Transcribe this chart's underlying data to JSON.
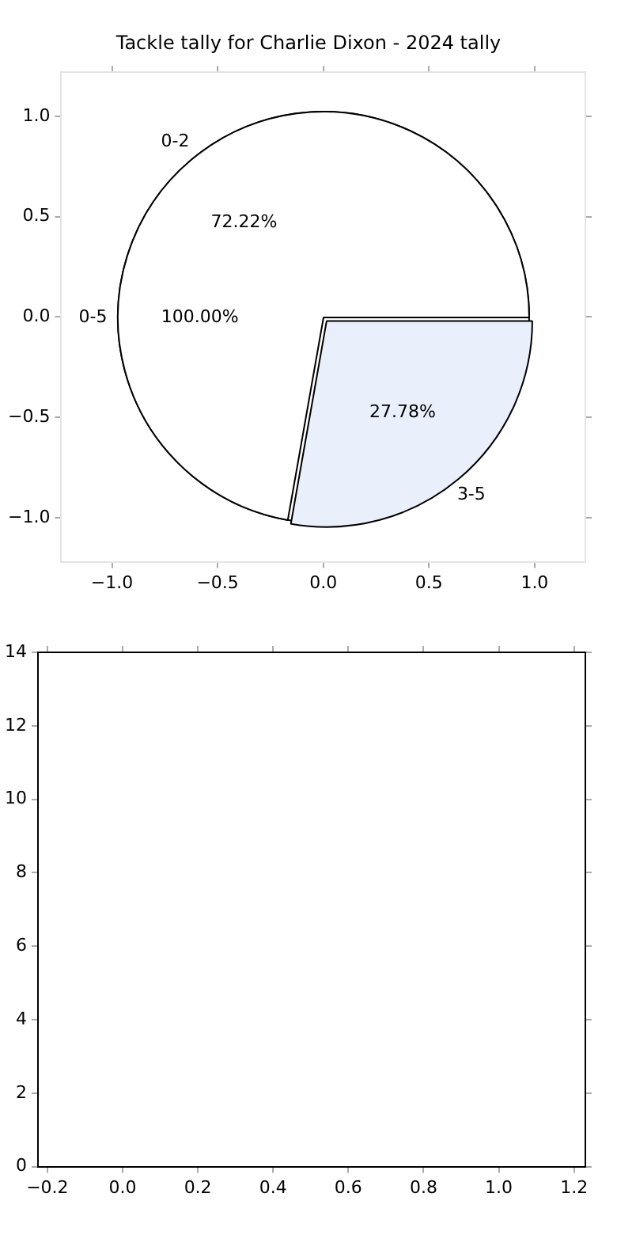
{
  "chart_data": [
    {
      "type": "scatter",
      "title": "Tackle tally for Charlie Dixon - 2024 tally",
      "xlim": [
        -1.24,
        1.24
      ],
      "ylim": [
        -1.22,
        1.22
      ],
      "xticks": [
        {
          "value": -1,
          "label": "−1.0"
        },
        {
          "value": -0.5,
          "label": "−0.5"
        },
        {
          "value": 0,
          "label": "0.0"
        },
        0.5,
        {
          "value": 1,
          "label": "1.0"
        }
      ],
      "yticks": [
        {
          "value": -1,
          "label": "−1.0"
        },
        {
          "value": -0.5,
          "label": "−0.5"
        },
        {
          "value": 0,
          "label": "0.0"
        },
        0.5,
        {
          "value": 1,
          "label": "1.0"
        }
      ]
    },
    {
      "type": "pie",
      "categories": [
        "0-5"
      ],
      "values": [
        100
      ],
      "colors": [
        "#ffffff"
      ],
      "value_labels": [
        "100.00%"
      ]
    },
    {
      "type": "pie",
      "categories": [
        "0-2",
        "3-5"
      ],
      "values": [
        72.22,
        27.78
      ],
      "colors": [
        "#ffffff",
        "#eaf0fb"
      ],
      "value_labels": [
        "72.22%",
        "27.78%"
      ]
    },
    {
      "type": "scatter",
      "xlim": [
        -0.225,
        1.23
      ],
      "ylim": [
        0,
        14
      ],
      "xticks": [
        {
          "value": -0.2,
          "label": "−0.2"
        },
        {
          "value": 0,
          "label": "0.0"
        },
        0.2,
        0.4,
        0.6,
        0.8,
        {
          "value": 1,
          "label": "1.0"
        },
        1.2
      ],
      "yticks": [
        0,
        2,
        4,
        6,
        8,
        10,
        12,
        14
      ]
    }
  ]
}
